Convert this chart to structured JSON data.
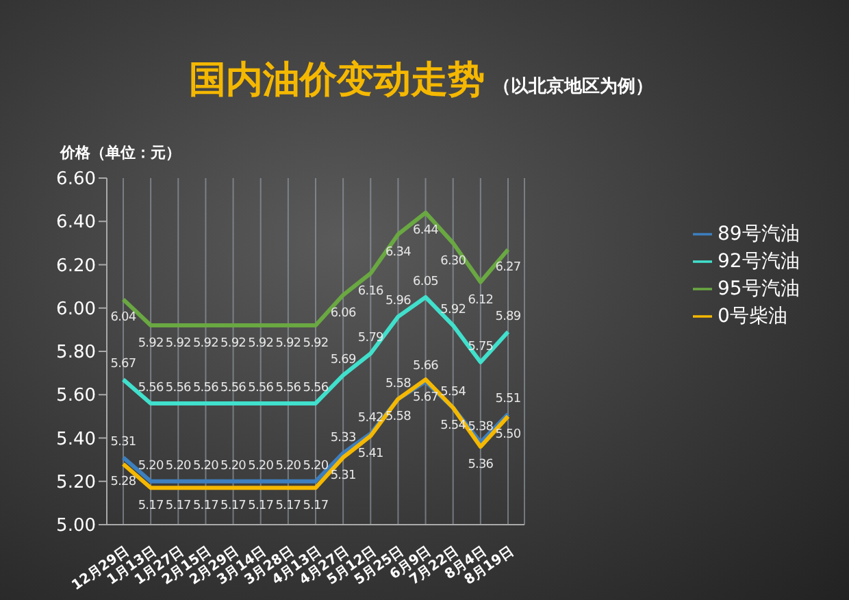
{
  "chart_data": {
    "type": "line",
    "title": "国内油价变动走势",
    "subtitle": "（以北京地区为例）",
    "ylabel": "价格（单位：元）",
    "categories": [
      "12月29日",
      "1月13日",
      "1月27日",
      "2月15日",
      "2月29日",
      "3月14日",
      "3月28日",
      "4月13日",
      "4月27日",
      "5月12日",
      "5月25日",
      "6月9日",
      "7月22日",
      "8月4日",
      "8月19日"
    ],
    "series": [
      {
        "name": "89号汽油",
        "color": "#3d7fbf",
        "values": [
          5.31,
          5.2,
          5.2,
          5.2,
          5.2,
          5.2,
          5.2,
          5.2,
          5.33,
          5.42,
          5.58,
          5.66,
          5.54,
          5.38,
          5.51
        ],
        "value_labels": [
          "5.31",
          "5.20",
          "5.20",
          "5.20",
          "5.20",
          "5.20",
          "5.20",
          "5.20",
          "5.33",
          "5.42",
          "5.58",
          "5.66",
          "5.54",
          "5.38",
          "5.51"
        ]
      },
      {
        "name": "92号汽油",
        "color": "#40e0cc",
        "values": [
          5.67,
          5.56,
          5.56,
          5.56,
          5.56,
          5.56,
          5.56,
          5.56,
          5.69,
          5.79,
          5.96,
          6.05,
          5.92,
          5.75,
          5.89
        ],
        "value_labels": [
          "5.67",
          "5.56",
          "5.56",
          "5.56",
          "5.56",
          "5.56",
          "5.56",
          "5.56",
          "5.69",
          "5.79",
          "5.96",
          "6.05",
          "5.92",
          "5.75",
          "5.89"
        ]
      },
      {
        "name": "95号汽油",
        "color": "#6aa842",
        "values": [
          6.04,
          5.92,
          5.92,
          5.92,
          5.92,
          5.92,
          5.92,
          5.92,
          6.06,
          6.16,
          6.34,
          6.44,
          6.3,
          6.12,
          6.27
        ],
        "value_labels": [
          "6.04",
          "5.92",
          "5.92",
          "5.92",
          "5.92",
          "5.92",
          "5.92",
          "5.92",
          "6.06",
          "6.16",
          "6.34",
          "6.44",
          "6.30",
          "6.12",
          "6.27"
        ]
      },
      {
        "name": "0号柴油",
        "color": "#f5b800",
        "values": [
          5.28,
          5.17,
          5.17,
          5.17,
          5.17,
          5.17,
          5.17,
          5.17,
          5.31,
          5.41,
          5.58,
          5.67,
          5.54,
          5.36,
          5.5
        ],
        "value_labels": [
          "5.28",
          "5.17",
          "5.17",
          "5.17",
          "5.17",
          "5.17",
          "5.17",
          "5.17",
          "5.31",
          "5.41",
          "5.58",
          "5.67",
          "5.54",
          "5.36",
          "5.50"
        ]
      }
    ],
    "ylim": [
      5.0,
      6.6
    ],
    "yticks": [
      {
        "value": 5.0,
        "label": "5.00"
      },
      {
        "value": 5.2,
        "label": "5.20"
      },
      {
        "value": 5.4,
        "label": "5.40"
      },
      {
        "value": 5.6,
        "label": "5.60"
      },
      {
        "value": 5.8,
        "label": "5.80"
      },
      {
        "value": 6.0,
        "label": "6.00"
      },
      {
        "value": 6.2,
        "label": "6.20"
      },
      {
        "value": 6.4,
        "label": "6.40"
      },
      {
        "value": 6.6,
        "label": "6.60"
      }
    ],
    "grid": "x",
    "legend": "right",
    "marker": "none",
    "line_style": "solid"
  }
}
